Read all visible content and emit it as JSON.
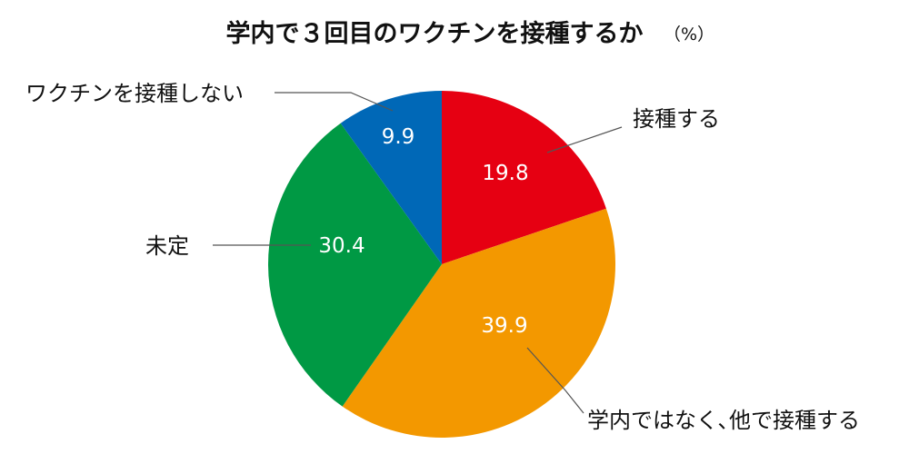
{
  "chart_data": {
    "type": "pie",
    "title": "学内で３回目のワクチンを接種するか",
    "unit": "（%）",
    "start_angle_deg": 0,
    "direction": "clockwise",
    "slices": [
      {
        "label": "接種する",
        "value": 19.8,
        "value_label": "19.8",
        "color": "#e60012"
      },
      {
        "label": "学内ではなく､他で接種する",
        "value": 39.9,
        "value_label": "39.9",
        "color": "#f39800"
      },
      {
        "label": "未定",
        "value": 30.4,
        "value_label": "30.4",
        "color": "#009944"
      },
      {
        "label": "ワクチンを接種しない",
        "value": 9.9,
        "value_label": "9.9",
        "color": "#0068b7"
      }
    ]
  }
}
